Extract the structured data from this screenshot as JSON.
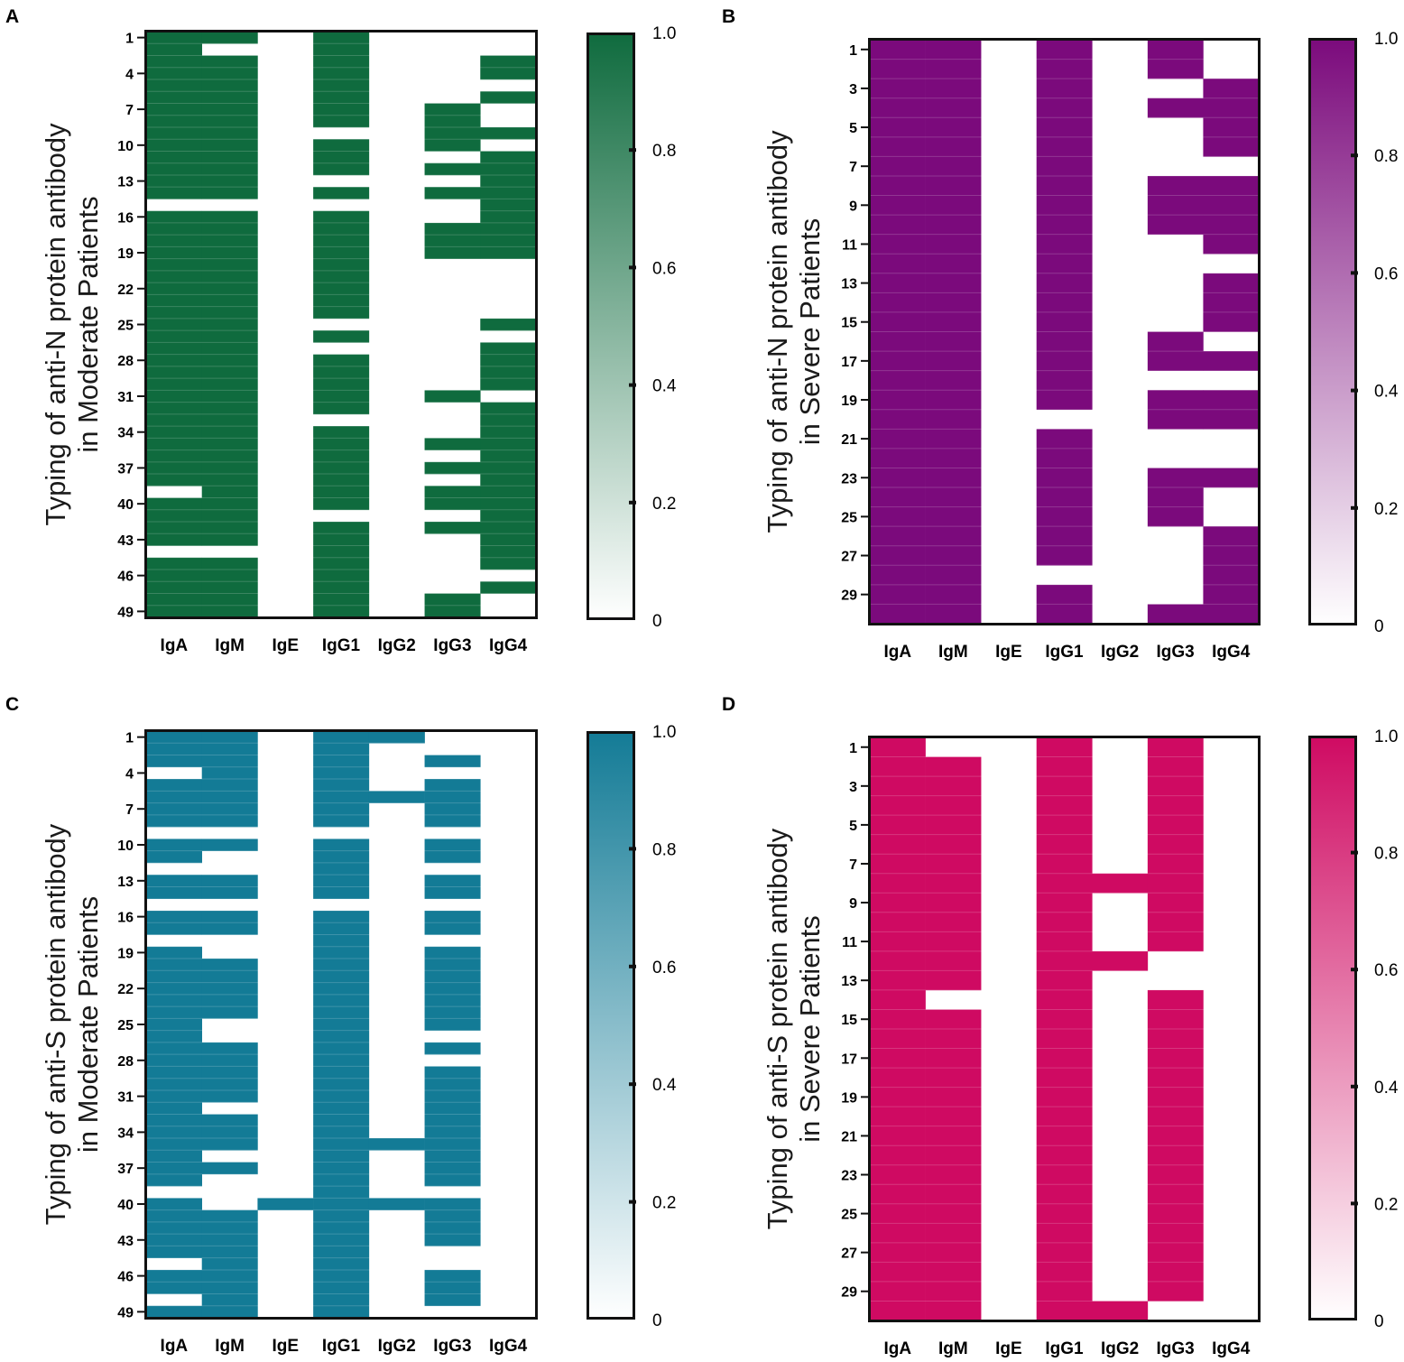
{
  "chart_data": [
    {
      "panel": "A",
      "type": "heatmap",
      "ylabel_lines": [
        "Typing of anti-N protein antibody",
        "in Moderate Patients"
      ],
      "x_categories": [
        "IgA",
        "IgM",
        "IgE",
        "IgG1",
        "IgG2",
        "IgG3",
        "IgG4"
      ],
      "y_ticks": [
        "1",
        "4",
        "7",
        "10",
        "13",
        "16",
        "19",
        "22",
        "25",
        "28",
        "31",
        "34",
        "37",
        "40",
        "43",
        "46",
        "49"
      ],
      "y_tick_rows": [
        1,
        4,
        7,
        10,
        13,
        16,
        19,
        22,
        25,
        28,
        31,
        34,
        37,
        40,
        43,
        46,
        49
      ],
      "n_rows": 49,
      "colorbar_ticks": [
        "1.0",
        "0.8",
        "0.6",
        "0.4",
        "0.2",
        "0"
      ],
      "value_range": [
        0,
        1
      ],
      "color": "#0f6b3e",
      "positive_cells": {
        "IgA": [
          [
            1,
            14
          ],
          [
            16,
            38
          ],
          [
            40,
            43
          ],
          [
            45,
            49
          ]
        ],
        "IgM": [
          [
            1,
            1
          ],
          [
            3,
            14
          ],
          [
            16,
            43
          ],
          [
            45,
            49
          ]
        ],
        "IgE": [],
        "IgG1": [
          [
            1,
            8
          ],
          [
            10,
            12
          ],
          [
            14,
            14
          ],
          [
            16,
            24
          ],
          [
            26,
            26
          ],
          [
            28,
            32
          ],
          [
            34,
            40
          ],
          [
            42,
            49
          ]
        ],
        "IgG2": [],
        "IgG3": [
          [
            7,
            10
          ],
          [
            12,
            12
          ],
          [
            14,
            14
          ],
          [
            17,
            19
          ],
          [
            31,
            31
          ],
          [
            35,
            35
          ],
          [
            37,
            37
          ],
          [
            39,
            40
          ],
          [
            42,
            42
          ],
          [
            48,
            49
          ]
        ],
        "IgG4": [
          [
            3,
            4
          ],
          [
            6,
            6
          ],
          [
            9,
            9
          ],
          [
            11,
            19
          ],
          [
            25,
            25
          ],
          [
            27,
            30
          ],
          [
            32,
            45
          ],
          [
            47,
            47
          ]
        ]
      }
    },
    {
      "panel": "B",
      "type": "heatmap",
      "ylabel_lines": [
        "Typing of anti-N protein antibody",
        "in Severe  Patients"
      ],
      "x_categories": [
        "IgA",
        "IgM",
        "IgE",
        "IgG1",
        "IgG2",
        "IgG3",
        "IgG4"
      ],
      "y_ticks": [
        "1",
        "3",
        "5",
        "7",
        "9",
        "11",
        "13",
        "15",
        "17",
        "19",
        "21",
        "23",
        "25",
        "27",
        "29"
      ],
      "y_tick_rows": [
        1,
        3,
        5,
        7,
        9,
        11,
        13,
        15,
        17,
        19,
        21,
        23,
        25,
        27,
        29
      ],
      "n_rows": 30,
      "colorbar_ticks": [
        "1.0",
        "0.8",
        "0.6",
        "0.4",
        "0.2",
        "0"
      ],
      "value_range": [
        0,
        1
      ],
      "color": "#7b0a7c",
      "positive_cells": {
        "IgA": [
          [
            1,
            30
          ]
        ],
        "IgM": [
          [
            1,
            30
          ]
        ],
        "IgE": [],
        "IgG1": [
          [
            1,
            19
          ],
          [
            21,
            27
          ],
          [
            29,
            30
          ]
        ],
        "IgG2": [],
        "IgG3": [
          [
            1,
            2
          ],
          [
            4,
            4
          ],
          [
            8,
            10
          ],
          [
            16,
            17
          ],
          [
            19,
            20
          ],
          [
            23,
            25
          ],
          [
            30,
            30
          ]
        ],
        "IgG4": [
          [
            3,
            6
          ],
          [
            8,
            11
          ],
          [
            13,
            15
          ],
          [
            17,
            17
          ],
          [
            19,
            20
          ],
          [
            23,
            23
          ],
          [
            26,
            30
          ]
        ]
      }
    },
    {
      "panel": "C",
      "type": "heatmap",
      "ylabel_lines": [
        "Typing of anti-S protein antibody",
        "in Moderate Patients"
      ],
      "x_categories": [
        "IgA",
        "IgM",
        "IgE",
        "IgG1",
        "IgG2",
        "IgG3",
        "IgG4"
      ],
      "y_ticks": [
        "1",
        "4",
        "7",
        "10",
        "13",
        "16",
        "19",
        "22",
        "25",
        "28",
        "31",
        "34",
        "37",
        "40",
        "43",
        "46",
        "49"
      ],
      "y_tick_rows": [
        1,
        4,
        7,
        10,
        13,
        16,
        19,
        22,
        25,
        28,
        31,
        34,
        37,
        40,
        43,
        46,
        49
      ],
      "n_rows": 49,
      "colorbar_ticks": [
        "1.0",
        "0.8",
        "0.6",
        "0.4",
        "0.2",
        "0"
      ],
      "value_range": [
        0,
        1
      ],
      "color": "#137b96",
      "positive_cells": {
        "IgA": [
          [
            1,
            3
          ],
          [
            5,
            8
          ],
          [
            10,
            11
          ],
          [
            13,
            14
          ],
          [
            16,
            17
          ],
          [
            19,
            38
          ],
          [
            40,
            44
          ],
          [
            46,
            47
          ],
          [
            49,
            49
          ]
        ],
        "IgM": [
          [
            1,
            8
          ],
          [
            10,
            10
          ],
          [
            13,
            14
          ],
          [
            16,
            17
          ],
          [
            20,
            24
          ],
          [
            27,
            31
          ],
          [
            33,
            35
          ],
          [
            37,
            37
          ],
          [
            41,
            49
          ]
        ],
        "IgE": [
          [
            40,
            40
          ]
        ],
        "IgG1": [
          [
            1,
            8
          ],
          [
            10,
            14
          ],
          [
            16,
            49
          ]
        ],
        "IgG2": [
          [
            1,
            1
          ],
          [
            6,
            6
          ],
          [
            35,
            35
          ],
          [
            40,
            40
          ]
        ],
        "IgG3": [
          [
            3,
            3
          ],
          [
            5,
            8
          ],
          [
            10,
            11
          ],
          [
            13,
            14
          ],
          [
            16,
            17
          ],
          [
            19,
            25
          ],
          [
            27,
            27
          ],
          [
            29,
            38
          ],
          [
            40,
            43
          ],
          [
            46,
            48
          ]
        ],
        "IgG4": []
      }
    },
    {
      "panel": "D",
      "type": "heatmap",
      "ylabel_lines": [
        "Typing of anti-S protein antibody",
        "in Severe  Patients"
      ],
      "x_categories": [
        "IgA",
        "IgM",
        "IgE",
        "IgG1",
        "IgG2",
        "IgG3",
        "IgG4"
      ],
      "y_ticks": [
        "1",
        "3",
        "5",
        "7",
        "9",
        "11",
        "13",
        "15",
        "17",
        "19",
        "21",
        "23",
        "25",
        "27",
        "29"
      ],
      "y_tick_rows": [
        1,
        3,
        5,
        7,
        9,
        11,
        13,
        15,
        17,
        19,
        21,
        23,
        25,
        27,
        29
      ],
      "n_rows": 30,
      "colorbar_ticks": [
        "1.0",
        "0.8",
        "0.6",
        "0.4",
        "0.2",
        "0"
      ],
      "value_range": [
        0,
        1
      ],
      "color": "#cf0a62",
      "positive_cells": {
        "IgA": [
          [
            1,
            30
          ]
        ],
        "IgM": [
          [
            2,
            13
          ],
          [
            15,
            30
          ]
        ],
        "IgE": [],
        "IgG1": [
          [
            1,
            30
          ]
        ],
        "IgG2": [
          [
            8,
            8
          ],
          [
            12,
            12
          ],
          [
            30,
            30
          ]
        ],
        "IgG3": [
          [
            1,
            11
          ],
          [
            14,
            29
          ]
        ],
        "IgG4": []
      }
    }
  ]
}
